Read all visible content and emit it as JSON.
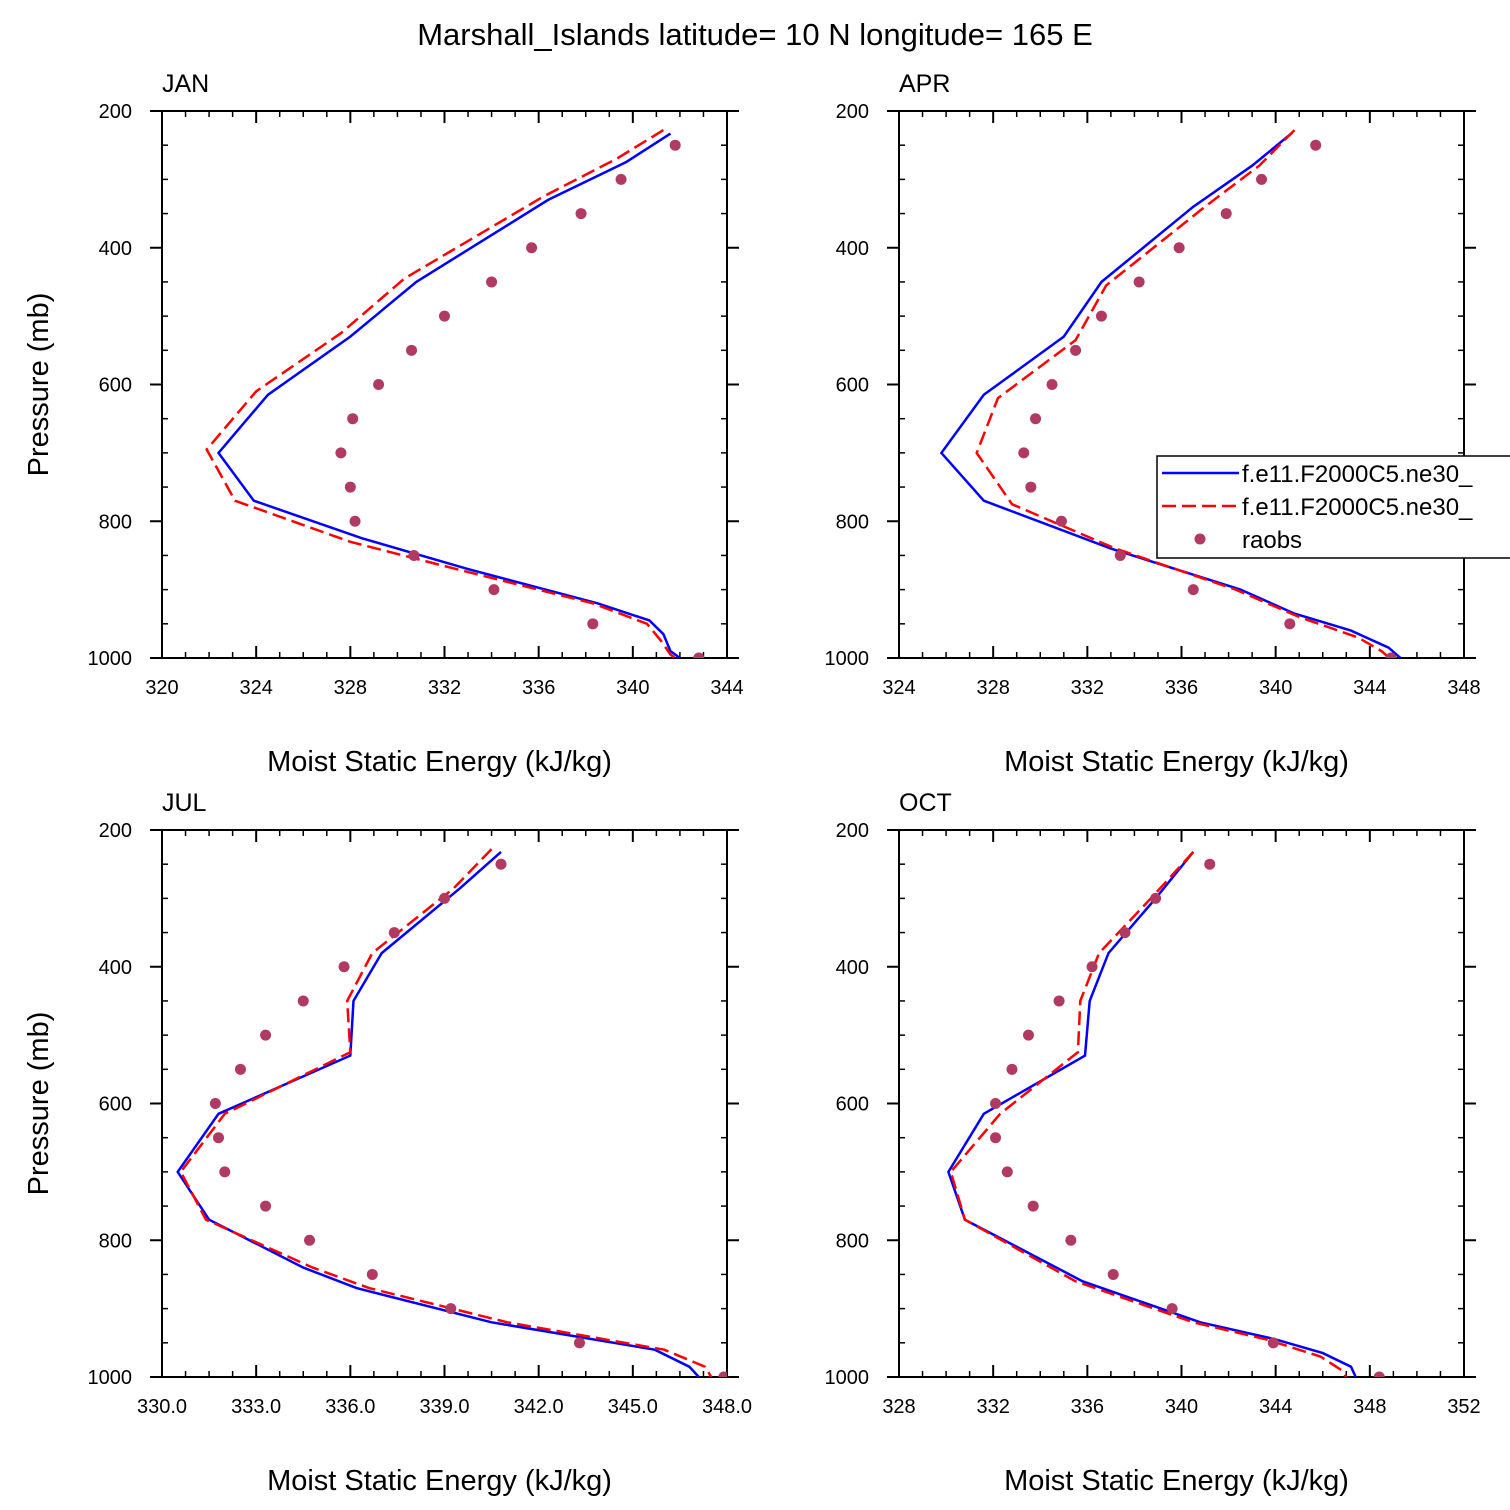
{
  "figure": {
    "title": "Marshall_Islands  latitude= 10 N longitude= 165 E"
  },
  "legend": {
    "entries": [
      {
        "name": "f.e11.F2000C5.ne30_",
        "style": "solid",
        "color": "#0000ff"
      },
      {
        "name": "f.e11.F2000C5.ne30_",
        "style": "dashed",
        "color": "#ff0000"
      },
      {
        "name": "raobs",
        "style": "marker",
        "color": "#b03a62"
      }
    ]
  },
  "chart_data": [
    {
      "type": "line",
      "title": "JAN",
      "xlabel": "Moist Static Energy (kJ/kg)",
      "ylabel": "Pressure (mb)",
      "xlim": [
        320,
        344
      ],
      "ylim": [
        1000,
        200
      ],
      "x_ticks": [
        "320",
        "324",
        "328",
        "332",
        "336",
        "340",
        "344"
      ],
      "y_ticks": [
        "200",
        "400",
        "600",
        "800",
        "1000"
      ],
      "series": [
        {
          "style": "solid",
          "color": "#0000ff",
          "p": [
            233,
            275,
            330,
            450,
            530,
            615,
            700,
            770,
            825,
            870,
            920,
            945,
            965,
            990,
            1000
          ],
          "x": [
            341.6,
            339.7,
            336.4,
            330.8,
            328.0,
            324.5,
            322.4,
            323.9,
            328.5,
            333.0,
            338.5,
            340.7,
            341.3,
            341.6,
            342.0
          ]
        },
        {
          "style": "dashed",
          "color": "#ff0000",
          "p": [
            228,
            270,
            325,
            445,
            525,
            610,
            695,
            770,
            830,
            870,
            920,
            950,
            975,
            995,
            1000
          ],
          "x": [
            341.3,
            339.3,
            336.2,
            330.3,
            327.6,
            324.0,
            321.9,
            323.1,
            328.0,
            332.5,
            338.3,
            340.6,
            341.2,
            341.6,
            341.8
          ]
        },
        {
          "style": "marker",
          "color": "#b03a62",
          "p": [
            250,
            300,
            350,
            400,
            450,
            500,
            550,
            600,
            650,
            700,
            750,
            800,
            850,
            900,
            950,
            1000
          ],
          "x": [
            341.8,
            339.5,
            337.8,
            335.7,
            334.0,
            332.0,
            330.6,
            329.2,
            328.1,
            327.6,
            328.0,
            328.2,
            330.7,
            334.1,
            338.3,
            342.8
          ]
        }
      ]
    },
    {
      "type": "line",
      "title": "APR",
      "xlabel": "Moist Static Energy (kJ/kg)",
      "ylabel": "",
      "xlim": [
        324,
        348
      ],
      "ylim": [
        1000,
        200
      ],
      "x_ticks": [
        "324",
        "328",
        "332",
        "336",
        "340",
        "344",
        "348"
      ],
      "y_ticks": [
        "200",
        "400",
        "600",
        "800",
        "1000"
      ],
      "series": [
        {
          "style": "solid",
          "color": "#0000ff",
          "p": [
            232,
            280,
            340,
            450,
            530,
            615,
            700,
            770,
            840,
            900,
            935,
            960,
            985,
            1000
          ],
          "x": [
            340.7,
            339.0,
            336.5,
            332.6,
            331.0,
            327.6,
            325.8,
            327.6,
            333.0,
            338.5,
            340.8,
            343.2,
            344.8,
            345.3
          ]
        },
        {
          "style": "dashed",
          "color": "#ff0000",
          "p": [
            228,
            280,
            340,
            455,
            535,
            620,
            700,
            775,
            840,
            900,
            940,
            970,
            990,
            1005
          ],
          "x": [
            340.8,
            339.3,
            337.0,
            332.8,
            331.5,
            328.2,
            327.3,
            328.8,
            333.2,
            338.3,
            341.0,
            343.5,
            344.5,
            345.0
          ]
        },
        {
          "style": "marker",
          "color": "#b03a62",
          "p": [
            250,
            300,
            350,
            400,
            450,
            500,
            550,
            600,
            650,
            700,
            750,
            800,
            850,
            900,
            950,
            1000
          ],
          "x": [
            341.7,
            339.4,
            337.9,
            335.9,
            334.2,
            332.6,
            331.5,
            330.5,
            329.8,
            329.3,
            329.6,
            330.9,
            333.4,
            336.5,
            340.6,
            344.9
          ]
        }
      ]
    },
    {
      "type": "line",
      "title": "JUL",
      "xlabel": "Moist Static Energy (kJ/kg)",
      "ylabel": "Pressure (mb)",
      "xlim": [
        330,
        348
      ],
      "ylim": [
        1000,
        200
      ],
      "x_ticks": [
        "330.0",
        "333.0",
        "336.0",
        "339.0",
        "342.0",
        "345.0",
        "348.0"
      ],
      "y_ticks": [
        "200",
        "400",
        "600",
        "800",
        "1000"
      ],
      "series": [
        {
          "style": "solid",
          "color": "#0000ff",
          "p": [
            232,
            285,
            380,
            450,
            530,
            615,
            700,
            770,
            840,
            870,
            920,
            960,
            985,
            1000
          ],
          "x": [
            340.8,
            339.5,
            337.0,
            336.1,
            336.0,
            331.8,
            330.5,
            331.5,
            334.5,
            336.2,
            340.5,
            345.7,
            346.8,
            347.1
          ]
        },
        {
          "style": "dashed",
          "color": "#ff0000",
          "p": [
            228,
            285,
            380,
            450,
            525,
            615,
            700,
            770,
            840,
            870,
            920,
            960,
            985,
            1000
          ],
          "x": [
            340.5,
            339.3,
            336.7,
            335.9,
            336.0,
            332.0,
            330.6,
            331.4,
            334.8,
            336.6,
            341.0,
            346.0,
            347.3,
            347.5
          ]
        },
        {
          "style": "marker",
          "color": "#b03a62",
          "p": [
            250,
            300,
            350,
            400,
            450,
            500,
            550,
            600,
            650,
            700,
            750,
            800,
            850,
            900,
            950,
            1000
          ],
          "x": [
            340.8,
            339.0,
            337.4,
            335.8,
            334.5,
            333.3,
            332.5,
            331.7,
            331.8,
            332.0,
            333.3,
            334.7,
            336.7,
            339.2,
            343.3,
            347.9
          ]
        }
      ]
    },
    {
      "type": "line",
      "title": "OCT",
      "xlabel": "Moist Static Energy (kJ/kg)",
      "ylabel": "",
      "xlim": [
        328,
        352
      ],
      "ylim": [
        1000,
        200
      ],
      "x_ticks": [
        "328",
        "332",
        "336",
        "340",
        "344",
        "348",
        "352"
      ],
      "y_ticks": [
        "200",
        "400",
        "600",
        "800",
        "1000"
      ],
      "series": [
        {
          "style": "solid",
          "color": "#0000ff",
          "p": [
            232,
            300,
            380,
            450,
            530,
            615,
            700,
            770,
            860,
            920,
            945,
            965,
            985,
            1000
          ],
          "x": [
            340.5,
            338.9,
            336.9,
            336.1,
            335.9,
            331.6,
            330.1,
            330.8,
            335.8,
            340.8,
            344.0,
            346.0,
            347.2,
            347.4
          ]
        },
        {
          "style": "dashed",
          "color": "#ff0000",
          "p": [
            232,
            300,
            380,
            450,
            525,
            615,
            700,
            770,
            860,
            920,
            945,
            970,
            990,
            1000
          ],
          "x": [
            340.5,
            338.7,
            336.5,
            335.7,
            335.6,
            332.3,
            330.2,
            330.8,
            335.5,
            340.5,
            343.6,
            345.9,
            346.8,
            347.0
          ]
        },
        {
          "style": "marker",
          "color": "#b03a62",
          "p": [
            250,
            300,
            350,
            400,
            450,
            500,
            550,
            600,
            650,
            700,
            750,
            800,
            850,
            900,
            950,
            1000
          ],
          "x": [
            341.2,
            338.9,
            337.6,
            336.2,
            334.8,
            333.5,
            332.8,
            332.1,
            332.1,
            332.6,
            333.7,
            335.3,
            337.1,
            339.6,
            343.9,
            348.4
          ]
        }
      ]
    }
  ]
}
